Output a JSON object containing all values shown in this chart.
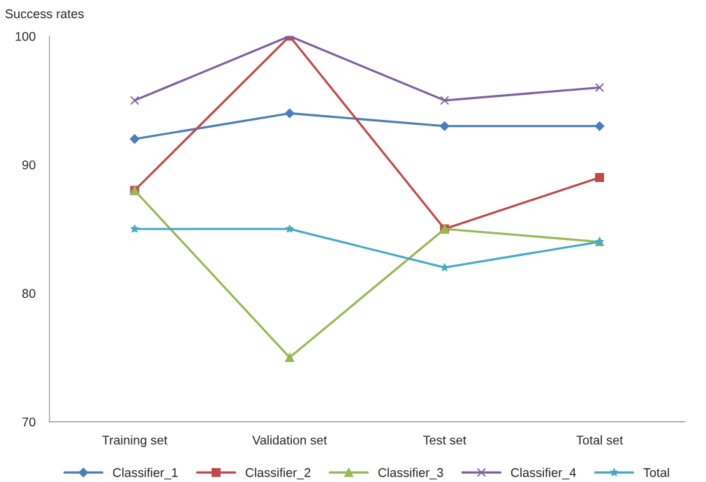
{
  "chart_data": {
    "type": "line",
    "ylabel": "Success rates",
    "categories": [
      "Training set",
      "Validation set",
      "Test set",
      "Total set"
    ],
    "ylim": [
      70,
      100
    ],
    "yticks": [
      70,
      80,
      90,
      100
    ],
    "grid": false,
    "legend": "bottom",
    "series": [
      {
        "name": "Classifier_1",
        "color": "#4a7ebb",
        "marker": "diamond",
        "values": [
          92,
          94,
          93,
          93
        ]
      },
      {
        "name": "Classifier_2",
        "color": "#be4b48",
        "marker": "square",
        "values": [
          88,
          100,
          85,
          89
        ]
      },
      {
        "name": "Classifier_3",
        "color": "#98b954",
        "marker": "triangle",
        "values": [
          88,
          75,
          85,
          84
        ]
      },
      {
        "name": "Classifier_4",
        "color": "#7d60a0",
        "marker": "cross",
        "values": [
          95,
          100,
          95,
          96
        ]
      },
      {
        "name": "Total",
        "color": "#46aac5",
        "marker": "star",
        "values": [
          85,
          85,
          82,
          84
        ]
      }
    ]
  }
}
